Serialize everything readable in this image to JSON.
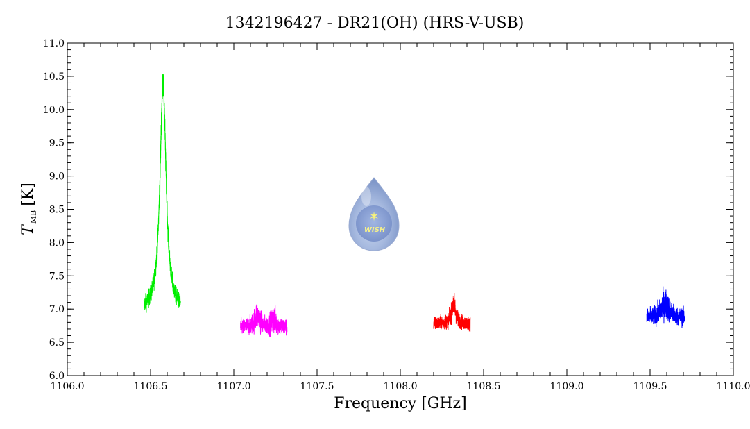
{
  "chart_data": {
    "type": "line",
    "title": "1342196427 - DR21(OH) (HRS-V-USB)",
    "xlabel": "Frequency [GHz]",
    "ylabel_main": "T",
    "ylabel_sub": "MB",
    "ylabel_unit": "[K]",
    "xlim": [
      1106.0,
      1110.0
    ],
    "ylim": [
      6.0,
      11.0
    ],
    "xticks": [
      "1106.0",
      "1106.5",
      "1107.0",
      "1107.5",
      "1108.0",
      "1108.5",
      "1109.0",
      "1109.5",
      "1110.0"
    ],
    "yticks": [
      "6.0",
      "6.5",
      "7.0",
      "7.5",
      "8.0",
      "8.5",
      "9.0",
      "9.5",
      "10.0",
      "10.5",
      "11.0"
    ],
    "grid": false,
    "series": [
      {
        "color": "#00ee00",
        "x_range": [
          1106.46,
          1106.68
        ],
        "baseline": 6.95,
        "noise": 0.12,
        "peaks": [
          {
            "x": 1106.575,
            "height": 3.45,
            "width": 0.022
          }
        ]
      },
      {
        "color": "#ff00ff",
        "x_range": [
          1107.04,
          1107.32
        ],
        "baseline": 6.72,
        "noise": 0.12,
        "peaks": [
          {
            "x": 1107.14,
            "height": 0.18,
            "width": 0.02
          },
          {
            "x": 1107.24,
            "height": 0.12,
            "width": 0.02
          }
        ]
      },
      {
        "color": "#ff0000",
        "x_range": [
          1108.2,
          1108.42
        ],
        "baseline": 6.78,
        "noise": 0.1,
        "peaks": [
          {
            "x": 1108.32,
            "height": 0.3,
            "width": 0.015
          }
        ]
      },
      {
        "color": "#0000ff",
        "x_range": [
          1109.48,
          1109.71
        ],
        "baseline": 6.86,
        "noise": 0.12,
        "peaks": [
          {
            "x": 1109.59,
            "height": 0.22,
            "width": 0.03
          }
        ]
      }
    ],
    "logo_text": "WISH"
  }
}
